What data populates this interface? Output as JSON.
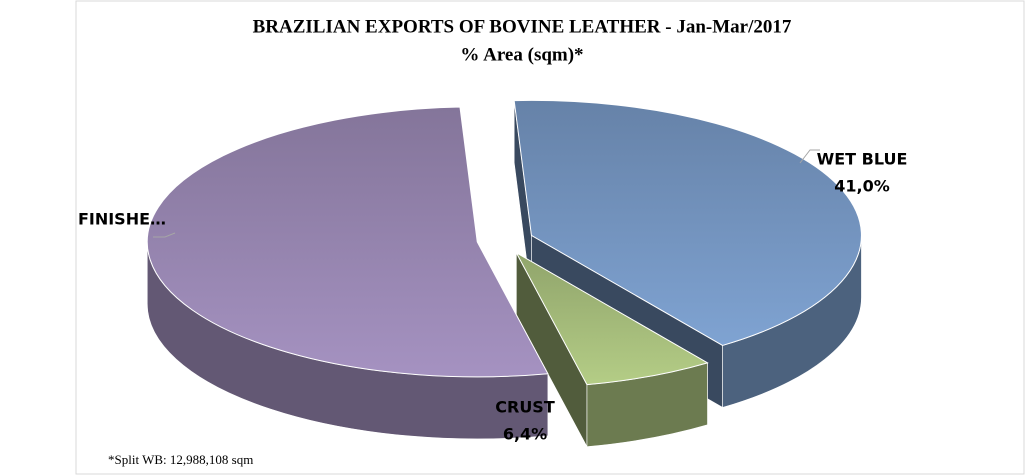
{
  "chart_data": {
    "type": "pie3d",
    "title": "BRAZILIAN EXPORTS OF BOVINE LEATHER -  Jan-Mar/2017",
    "subtitle": "% Area (sqm)*",
    "categories": [
      "WET BLUE",
      "CRUST",
      "FINISHE…"
    ],
    "values": [
      41.0,
      6.4,
      52.6
    ],
    "value_labels": [
      "41,0%",
      "6,4%",
      null
    ],
    "colors": [
      "#7fa3d2",
      "#b4cd86",
      "#a592c1"
    ],
    "footnote": "*Split WB: 12,988,108 sqm"
  }
}
